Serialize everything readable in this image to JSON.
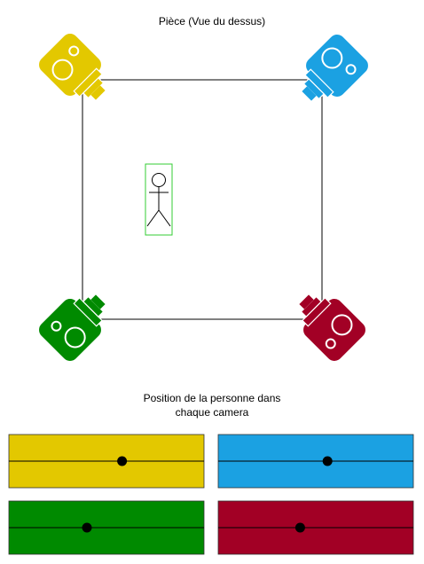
{
  "title": "Pièce (Vue du dessus)",
  "subtitle": [
    "Position de la personne dans",
    "chaque camera"
  ],
  "colors": {
    "yellow": "#e3c800",
    "blue": "#1ba1e2",
    "green": "#008a00",
    "red": "#a20025",
    "person_box": "#33cc33"
  },
  "cameras": [
    {
      "name": "yellow",
      "corner": "top-left"
    },
    {
      "name": "blue",
      "corner": "top-right"
    },
    {
      "name": "green",
      "corner": "bottom-left"
    },
    {
      "name": "red",
      "corner": "bottom-right"
    }
  ],
  "views": [
    {
      "camera": "yellow",
      "person_position": 0.58
    },
    {
      "camera": "blue",
      "person_position": 0.56
    },
    {
      "camera": "green",
      "person_position": 0.4
    },
    {
      "camera": "red",
      "person_position": 0.42
    }
  ]
}
